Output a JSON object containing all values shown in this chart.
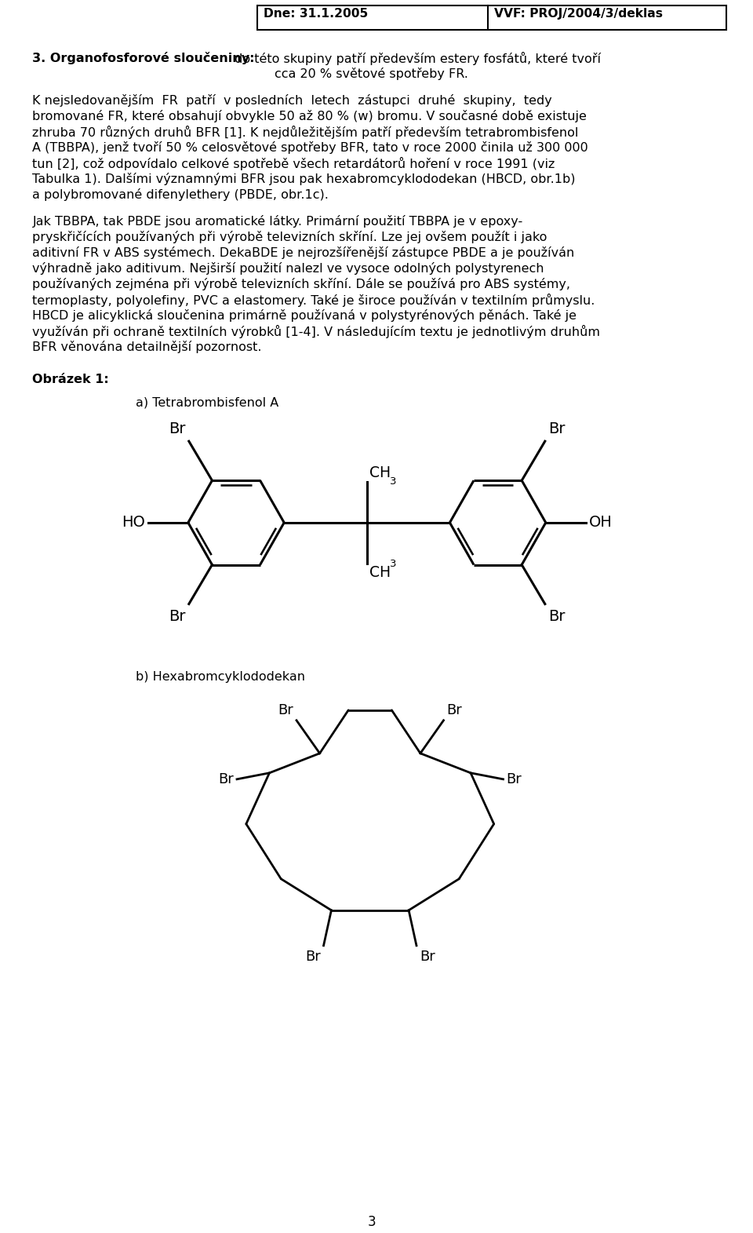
{
  "header_left": "Dne: 31.1.2005",
  "header_right": "VVF: PROJ/2004/3/deklas",
  "heading_bold": "3. Organofosforové sloučeniny:",
  "heading_rest_line1": " do této skupiny patří především estery fosfátů, které tvoří",
  "heading_rest_line2": "cca 20 % světové spotřeby FR.",
  "p1_lines": [
    "K nejsledovanějším  FR  patří  v posledních  letech  zástupci  druhé  skupiny,  tedy",
    "bromované FR, které obsahují obvykle 50 až 80 % (w) bromu. V současné době existuje",
    "zhruba 70 různých druhů BFR [1]. K nejdůležitějším patří především tetrabrombisfenol",
    "A (TBBPA), jenž tvoří 50 % celosvětové spotřeby BFR, tato v roce 2000 činila už 300 000",
    "tun [2], což odpovídalo celkové spotřebě všech retardátorů hoření v roce 1991 (viz",
    "Tabulka 1). Dalšími významnými BFR jsou pak hexabromcyklododekan (HBCD, obr.1b)",
    "a polybromované difenylethery (PBDE, obr.1c)."
  ],
  "p2_lines": [
    "Jak TBBPA, tak PBDE jsou aromatické látky. Primární použití TBBPA je v epoxy-",
    "pryskřičících používaných při výrobě televizních skříní. Lze jej ovšem použít i jako",
    "aditivní FR v ABS systémech. DekaBDE je nejrozšířenější zástupce PBDE a je používán",
    "výhradně jako aditivum. Nejširší použití nalezl ve vysoce odolných polystyrenech",
    "používaných zejména při výrobě televizních skříní. Dále se používá pro ABS systémy,",
    "termoplasty, polyolefiny, PVC a elastomery. Také je široce používán v textilním průmyslu.",
    "HBCD je alicyklická sloučenina primárně používaná v polystyrénových pěnách. Také je",
    "využíván při ochraně textilních výrobků [1-4]. V následujícím textu je jednotlivým druhům",
    "BFR věnována detailnější pozornost."
  ],
  "label_obr": "Obrázek 1:",
  "label_a": "a) Tetrabrombisfenol A",
  "label_b": "b) Hexabromcyklododekan",
  "page_number": "3",
  "bg_color": "#ffffff"
}
